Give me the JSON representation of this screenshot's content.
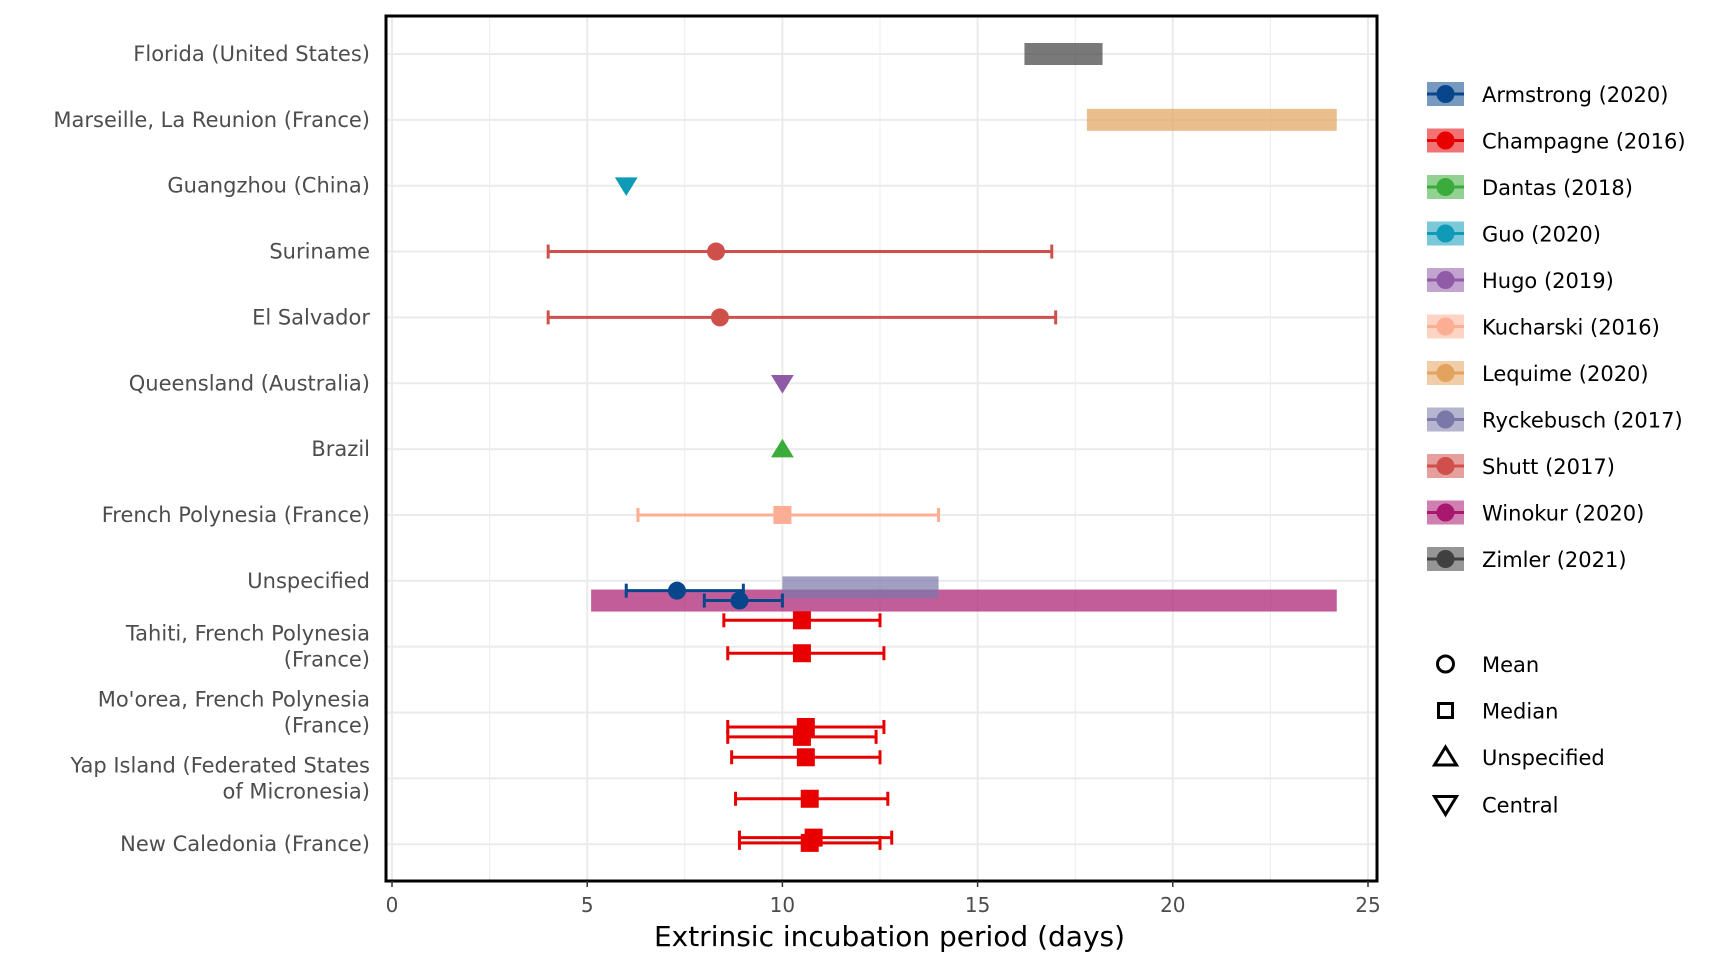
{
  "chart_data": {
    "type": "forest",
    "xlabel": "Extrinsic incubation period (days)",
    "ylabel": "",
    "xlim": [
      0,
      25
    ],
    "xticks": [
      0,
      5,
      10,
      15,
      20,
      25
    ],
    "grid": true,
    "legend_position": "right",
    "categories": [
      "Florida (United States)",
      "Marseille, La Reunion (France)",
      "Guangzhou (China)",
      "Suriname",
      "El Salvador",
      "Queensland (Australia)",
      "Brazil",
      "French Polynesia (France)",
      "Unspecified",
      "Tahiti, French Polynesia\n(France)",
      "Mo'orea, French Polynesia\n(France)",
      "Yap Island (Federated States\nof Micronesia)",
      "New Caledonia (France)"
    ],
    "series": [
      {
        "name": "Armstrong (2020)",
        "color": "#08468c"
      },
      {
        "name": "Champagne (2016)",
        "color": "#e80000"
      },
      {
        "name": "Dantas (2018)",
        "color": "#3bab3b"
      },
      {
        "name": "Guo (2020)",
        "color": "#0f9ab8"
      },
      {
        "name": "Hugo (2019)",
        "color": "#8f5aa6"
      },
      {
        "name": "Kucharski (2016)",
        "color": "#fcae94"
      },
      {
        "name": "Lequime (2020)",
        "color": "#e3a25e"
      },
      {
        "name": "Ryckebusch (2017)",
        "color": "#7a78a8"
      },
      {
        "name": "Shutt (2017)",
        "color": "#cf504b"
      },
      {
        "name": "Winokur (2020)",
        "color": "#a8186f"
      },
      {
        "name": "Zimler (2021)",
        "color": "#404040"
      }
    ],
    "ranges": [
      {
        "study": "Zimler (2021)",
        "category": "Florida (United States)",
        "low": 16.2,
        "high": 18.2,
        "offset": 0
      },
      {
        "study": "Lequime (2020)",
        "category": "Marseille, La Reunion (France)",
        "low": 17.8,
        "high": 24.2,
        "offset": 0
      },
      {
        "study": "Winokur (2020)",
        "category": "Unspecified",
        "low": 5.1,
        "high": 24.2,
        "offset": -0.3
      },
      {
        "study": "Ryckebusch (2017)",
        "category": "Unspecified",
        "low": 10.0,
        "high": 14.0,
        "offset": -0.1
      }
    ],
    "points": [
      {
        "study": "Guo (2020)",
        "category": "Guangzhou (China)",
        "value": 6.0,
        "shape": "Central",
        "offset": 0
      },
      {
        "study": "Shutt (2017)",
        "category": "Suriname",
        "value": 8.3,
        "low": 4.0,
        "high": 16.9,
        "shape": "Mean",
        "offset": 0
      },
      {
        "study": "Shutt (2017)",
        "category": "El Salvador",
        "value": 8.4,
        "low": 4.0,
        "high": 17.0,
        "shape": "Mean",
        "offset": 0
      },
      {
        "study": "Hugo (2019)",
        "category": "Queensland (Australia)",
        "value": 10.0,
        "shape": "Central",
        "offset": 0
      },
      {
        "study": "Dantas (2018)",
        "category": "Brazil",
        "value": 10.0,
        "shape": "Unspecified",
        "offset": 0
      },
      {
        "study": "Kucharski (2016)",
        "category": "French Polynesia (France)",
        "value": 10.0,
        "low": 6.3,
        "high": 14.0,
        "shape": "Median",
        "offset": 0
      },
      {
        "study": "Armstrong (2020)",
        "category": "Unspecified",
        "value": 8.9,
        "low": 8.0,
        "high": 10.0,
        "shape": "Mean",
        "offset": -0.3
      },
      {
        "study": "Armstrong (2020)",
        "category": "Unspecified",
        "value": 7.3,
        "low": 6.0,
        "high": 9.0,
        "shape": "Mean",
        "offset": -0.15
      },
      {
        "study": "Champagne (2016)",
        "category": "Tahiti, French Polynesia\n(France)",
        "value": 10.5,
        "low": 8.5,
        "high": 12.5,
        "shape": "Median",
        "offset": 0.4
      },
      {
        "study": "Champagne (2016)",
        "category": "Tahiti, French Polynesia\n(France)",
        "value": 10.5,
        "low": 8.6,
        "high": 12.6,
        "shape": "Median",
        "offset": -0.1
      },
      {
        "study": "Champagne (2016)",
        "category": "Mo'orea, French Polynesia\n(France)",
        "value": 10.6,
        "low": 8.6,
        "high": 12.6,
        "shape": "Median",
        "offset": -0.22
      },
      {
        "study": "Champagne (2016)",
        "category": "Mo'orea, French Polynesia\n(France)",
        "value": 10.5,
        "low": 8.6,
        "high": 12.4,
        "shape": "Median",
        "offset": -0.37
      },
      {
        "study": "Champagne (2016)",
        "category": "Yap Island (Federated States\nof Micronesia)",
        "value": 10.6,
        "low": 8.7,
        "high": 12.5,
        "shape": "Median",
        "offset": 0.32
      },
      {
        "study": "Champagne (2016)",
        "category": "Yap Island (Federated States\nof Micronesia)",
        "value": 10.7,
        "low": 8.8,
        "high": 12.7,
        "shape": "Median",
        "offset": -0.31
      },
      {
        "study": "Champagne (2016)",
        "category": "New Caledonia (France)",
        "value": 10.8,
        "low": 8.9,
        "high": 12.8,
        "shape": "Median",
        "offset": 0.1
      },
      {
        "study": "Champagne (2016)",
        "category": "New Caledonia (France)",
        "value": 10.7,
        "low": 8.9,
        "high": 12.5,
        "shape": "Median",
        "offset": 0.02
      }
    ],
    "shape_legend": [
      "Mean",
      "Median",
      "Unspecified",
      "Central"
    ]
  }
}
